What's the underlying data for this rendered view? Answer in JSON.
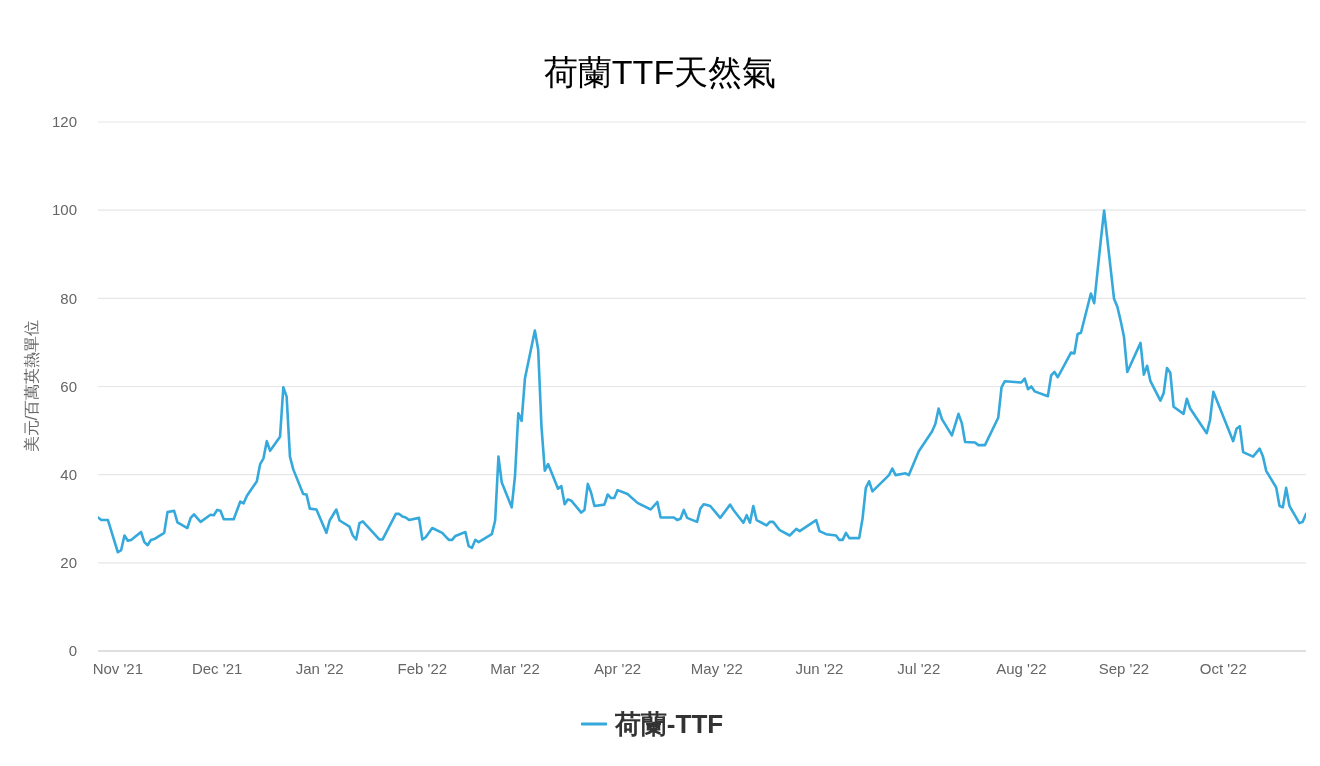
{
  "chart_data": {
    "type": "line",
    "title": "荷蘭TTF天然氣",
    "ylabel": "美元/百萬英熱單位",
    "x": [
      "2021-10-26",
      "2021-10-27",
      "2021-10-29",
      "2021-11-01",
      "2021-11-02",
      "2021-11-03",
      "2021-11-04",
      "2021-11-05",
      "2021-11-08",
      "2021-11-09",
      "2021-11-10",
      "2021-11-11",
      "2021-11-12",
      "2021-11-15",
      "2021-11-16",
      "2021-11-18",
      "2021-11-19",
      "2021-11-22",
      "2021-11-23",
      "2021-11-24",
      "2021-11-26",
      "2021-11-29",
      "2021-11-30",
      "2021-12-01",
      "2021-12-02",
      "2021-12-03",
      "2021-12-06",
      "2021-12-08",
      "2021-12-09",
      "2021-12-10",
      "2021-12-13",
      "2021-12-14",
      "2021-12-15",
      "2021-12-16",
      "2021-12-17",
      "2021-12-20",
      "2021-12-21",
      "2021-12-22",
      "2021-12-23",
      "2021-12-24",
      "2021-12-27",
      "2021-12-28",
      "2021-12-29",
      "2021-12-31",
      "2022-01-03",
      "2022-01-04",
      "2022-01-06",
      "2022-01-07",
      "2022-01-10",
      "2022-01-11",
      "2022-01-12",
      "2022-01-13",
      "2022-01-14",
      "2022-01-19",
      "2022-01-20",
      "2022-01-24",
      "2022-01-25",
      "2022-01-26",
      "2022-01-27",
      "2022-01-28",
      "2022-01-31",
      "2022-02-01",
      "2022-02-02",
      "2022-02-04",
      "2022-02-07",
      "2022-02-09",
      "2022-02-10",
      "2022-02-11",
      "2022-02-14",
      "2022-02-15",
      "2022-02-16",
      "2022-02-17",
      "2022-02-18",
      "2022-02-22",
      "2022-02-23",
      "2022-02-24",
      "2022-02-25",
      "2022-02-28",
      "2022-03-01",
      "2022-03-02",
      "2022-03-03",
      "2022-03-04",
      "2022-03-07",
      "2022-03-08",
      "2022-03-09",
      "2022-03-10",
      "2022-03-11",
      "2022-03-14",
      "2022-03-15",
      "2022-03-16",
      "2022-03-17",
      "2022-03-18",
      "2022-03-21",
      "2022-03-22",
      "2022-03-23",
      "2022-03-24",
      "2022-03-25",
      "2022-03-28",
      "2022-03-29",
      "2022-03-30",
      "2022-03-31",
      "2022-04-01",
      "2022-04-04",
      "2022-04-07",
      "2022-04-11",
      "2022-04-13",
      "2022-04-14",
      "2022-04-18",
      "2022-04-19",
      "2022-04-20",
      "2022-04-21",
      "2022-04-22",
      "2022-04-25",
      "2022-04-26",
      "2022-04-27",
      "2022-04-28",
      "2022-04-29",
      "2022-05-02",
      "2022-05-05",
      "2022-05-06",
      "2022-05-09",
      "2022-05-10",
      "2022-05-11",
      "2022-05-12",
      "2022-05-13",
      "2022-05-16",
      "2022-05-17",
      "2022-05-18",
      "2022-05-20",
      "2022-05-23",
      "2022-05-25",
      "2022-05-26",
      "2022-05-31",
      "2022-06-01",
      "2022-06-03",
      "2022-06-06",
      "2022-06-07",
      "2022-06-08",
      "2022-06-09",
      "2022-06-10",
      "2022-06-13",
      "2022-06-14",
      "2022-06-15",
      "2022-06-16",
      "2022-06-17",
      "2022-06-22",
      "2022-06-23",
      "2022-06-24",
      "2022-06-27",
      "2022-06-28",
      "2022-07-01",
      "2022-07-05",
      "2022-07-06",
      "2022-07-07",
      "2022-07-08",
      "2022-07-11",
      "2022-07-13",
      "2022-07-14",
      "2022-07-15",
      "2022-07-18",
      "2022-07-19",
      "2022-07-21",
      "2022-07-25",
      "2022-07-26",
      "2022-07-27",
      "2022-08-01",
      "2022-08-02",
      "2022-08-03",
      "2022-08-04",
      "2022-08-05",
      "2022-08-09",
      "2022-08-10",
      "2022-08-11",
      "2022-08-12",
      "2022-08-16",
      "2022-08-17",
      "2022-08-18",
      "2022-08-19",
      "2022-08-22",
      "2022-08-23",
      "2022-08-25",
      "2022-08-26",
      "2022-08-29",
      "2022-08-30",
      "2022-08-31",
      "2022-09-01",
      "2022-09-02",
      "2022-09-06",
      "2022-09-07",
      "2022-09-08",
      "2022-09-09",
      "2022-09-12",
      "2022-09-13",
      "2022-09-14",
      "2022-09-15",
      "2022-09-16",
      "2022-09-19",
      "2022-09-20",
      "2022-09-21",
      "2022-09-26",
      "2022-09-27",
      "2022-09-28",
      "2022-10-04",
      "2022-10-05",
      "2022-10-06",
      "2022-10-07",
      "2022-10-10",
      "2022-10-12",
      "2022-10-13",
      "2022-10-14",
      "2022-10-17",
      "2022-10-18",
      "2022-10-19",
      "2022-10-20",
      "2022-10-21",
      "2022-10-24",
      "2022-10-25",
      "2022-10-26"
    ],
    "series": [
      {
        "name": "荷蘭-TTF",
        "color": "#35a9db",
        "values": [
          30.3,
          29.7,
          29.7,
          22.4,
          22.9,
          26.2,
          25.0,
          25.2,
          27.0,
          24.7,
          24.0,
          25.2,
          25.4,
          26.8,
          31.5,
          31.8,
          29.2,
          27.9,
          30.2,
          31.0,
          29.3,
          30.9,
          30.8,
          32.0,
          31.8,
          29.9,
          29.9,
          33.9,
          33.5,
          35.2,
          38.5,
          42.4,
          43.7,
          47.6,
          45.4,
          48.6,
          59.8,
          57.7,
          44.1,
          41.2,
          35.6,
          35.5,
          32.3,
          32.1,
          26.8,
          29.6,
          32.1,
          29.6,
          28.2,
          26.2,
          25.3,
          29.0,
          29.4,
          25.3,
          25.3,
          31.1,
          31.1,
          30.5,
          30.3,
          29.7,
          30.2,
          25.3,
          25.8,
          27.9,
          26.8,
          25.2,
          25.2,
          26.1,
          27.0,
          23.8,
          23.4,
          25.2,
          24.7,
          26.5,
          29.6,
          44.1,
          38.2,
          32.6,
          39.7,
          53.9,
          52.2,
          61.8,
          72.7,
          68.4,
          50.9,
          40.9,
          42.4,
          36.8,
          37.4,
          33.3,
          34.4,
          34.1,
          31.4,
          32.0,
          37.9,
          35.9,
          32.9,
          33.2,
          35.5,
          34.7,
          34.7,
          36.5,
          35.6,
          33.6,
          32.1,
          33.8,
          30.3,
          30.3,
          29.7,
          30.0,
          32.0,
          30.2,
          29.3,
          32.3,
          33.3,
          33.1,
          32.9,
          30.2,
          33.2,
          32.0,
          29.1,
          30.8,
          29.1,
          32.9,
          29.7,
          28.5,
          29.3,
          29.3,
          27.4,
          26.2,
          27.7,
          27.2,
          29.7,
          27.2,
          26.5,
          26.2,
          25.2,
          25.2,
          26.8,
          25.6,
          25.6,
          30.0,
          37.0,
          38.5,
          36.2,
          39.9,
          41.4,
          39.9,
          40.3,
          39.9,
          45.3,
          49.8,
          51.5,
          55.0,
          52.6,
          48.9,
          53.8,
          51.7,
          47.4,
          47.3,
          46.7,
          46.7,
          52.9,
          59.8,
          61.2,
          60.9,
          61.8,
          59.4,
          60.0,
          58.9,
          57.8,
          62.5,
          63.3,
          62.1,
          67.7,
          67.5,
          71.9,
          72.2,
          81.1,
          78.9,
          93.2,
          99.9,
          79.9,
          78.1,
          74.9,
          71.3,
          63.3,
          69.9,
          62.7,
          64.7,
          61.2,
          56.8,
          58.5,
          64.2,
          63.1,
          55.4,
          53.8,
          57.2,
          55.0,
          49.4,
          52.4,
          58.8,
          47.6,
          50.4,
          51.0,
          45.1,
          44.1,
          45.9,
          44.1,
          40.8,
          37.1,
          32.9,
          32.6,
          37.0,
          32.9,
          29.0,
          29.3,
          31.1
        ]
      }
    ],
    "xlim": [
      "2021-10-26",
      "2022-10-26"
    ],
    "xticks": [
      {
        "value": "2021-11-01",
        "label": "Nov '21"
      },
      {
        "value": "2021-12-01",
        "label": "Dec '21"
      },
      {
        "value": "2022-01-01",
        "label": "Jan '22"
      },
      {
        "value": "2022-02-01",
        "label": "Feb '22"
      },
      {
        "value": "2022-03-01",
        "label": "Mar '22"
      },
      {
        "value": "2022-04-01",
        "label": "Apr '22"
      },
      {
        "value": "2022-05-01",
        "label": "May '22"
      },
      {
        "value": "2022-06-01",
        "label": "Jun '22"
      },
      {
        "value": "2022-07-01",
        "label": "Jul '22"
      },
      {
        "value": "2022-08-01",
        "label": "Aug '22"
      },
      {
        "value": "2022-09-01",
        "label": "Sep '22"
      },
      {
        "value": "2022-10-01",
        "label": "Oct '22"
      }
    ],
    "ylim": [
      0,
      120
    ],
    "yticks": [
      0,
      20,
      40,
      60,
      80,
      100,
      120
    ],
    "grid": "y",
    "legend": "bottom"
  }
}
